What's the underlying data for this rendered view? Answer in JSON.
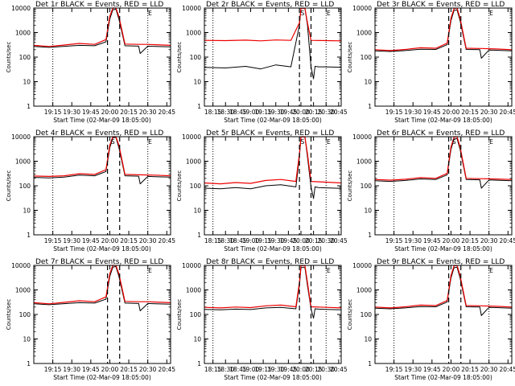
{
  "figure": {
    "colors": {
      "events": "#000000",
      "lld": "#ee0000",
      "background": "#ffffff"
    },
    "x_ticks": [
      "18:15",
      "18:30",
      "18:45",
      "19:00",
      "19:15",
      "19:30",
      "19:45",
      "20:00",
      "20:15",
      "20:30",
      "20:45"
    ],
    "y_ticks": [
      "1",
      "10",
      "100",
      "1000",
      "10000"
    ],
    "ylabel": "Counts/sec"
  },
  "chart_data": [
    {
      "type": "line",
      "title": "Det 1r BLACK = Events, RED = LLD",
      "xlabel": "Start Time (02-Mar-09 18:05:00)",
      "ylabel": "Counts/sec",
      "x_ticks": [
        "19:15",
        "19:30",
        "19:45",
        "20:00",
        "20:15",
        "20:30",
        "20:45"
      ],
      "xlim_hours": [
        19.0,
        20.8
      ],
      "ylim": [
        1,
        10000
      ],
      "yscale": "log",
      "dotted_lines_hours": [
        19.25,
        20.5
      ],
      "dashed_lines_hours": [
        19.97,
        20.13
      ],
      "markers": {
        "S": null,
        "E": 20.53
      },
      "series": [
        {
          "name": "Events",
          "color": "#000000",
          "x": [
            19.0,
            19.2,
            19.4,
            19.6,
            19.8,
            19.95,
            20.0,
            20.04,
            20.08,
            20.12,
            20.2,
            20.38,
            20.4,
            20.5,
            20.6,
            20.8
          ],
          "values": [
            270,
            250,
            275,
            300,
            290,
            420,
            3500,
            8500,
            9000,
            3500,
            290,
            280,
            140,
            280,
            270,
            260
          ]
        },
        {
          "name": "LLD",
          "color": "#ee0000",
          "x": [
            19.0,
            19.2,
            19.4,
            19.6,
            19.8,
            19.95,
            20.0,
            20.04,
            20.08,
            20.12,
            20.2,
            20.38,
            20.4,
            20.5,
            20.6,
            20.8
          ],
          "values": [
            300,
            270,
            310,
            360,
            330,
            520,
            4500,
            10000,
            10000,
            4500,
            340,
            330,
            330,
            330,
            320,
            300
          ]
        }
      ]
    },
    {
      "type": "line",
      "title": "Det 2r BLACK = Events, RED = LLD",
      "xlabel": "Start Time (02-Mar-09 18:05:00)",
      "ylabel": "Counts/sec",
      "x_ticks": [
        "18:15",
        "18:30",
        "18:45",
        "19:00",
        "19:15",
        "19:30",
        "19:45",
        "20:00",
        "20:15",
        "20:30",
        "20:45"
      ],
      "xlim_hours": [
        18.08,
        20.8
      ],
      "ylim": [
        1,
        10000
      ],
      "yscale": "log",
      "dotted_lines_hours": [
        18.25,
        20.5
      ],
      "dashed_lines_hours": [
        19.97,
        20.2
      ],
      "markers": {
        "S": 20.03,
        "E": 20.55
      },
      "series": [
        {
          "name": "Events",
          "color": "#000000",
          "x": [
            18.08,
            18.5,
            18.9,
            19.2,
            19.5,
            19.8,
            19.97,
            20.0,
            20.04,
            20.08,
            20.13,
            20.2,
            20.25,
            20.28,
            20.35,
            20.5,
            20.8
          ],
          "values": [
            38,
            36,
            42,
            33,
            48,
            40,
            2000,
            9500,
            10000,
            9500,
            2000,
            40,
            13,
            42,
            40,
            40,
            38
          ]
        },
        {
          "name": "LLD",
          "color": "#ee0000",
          "x": [
            18.08,
            18.5,
            18.9,
            19.2,
            19.5,
            19.8,
            19.97,
            20.0,
            20.04,
            20.08,
            20.13,
            20.2,
            20.5,
            20.8
          ],
          "values": [
            480,
            470,
            490,
            460,
            500,
            480,
            2500,
            9500,
            10000,
            9500,
            2500,
            480,
            470,
            460
          ]
        }
      ]
    },
    {
      "type": "line",
      "title": "Det 3r BLACK = Events, RED = LLD",
      "xlabel": "Start Time (02-Mar-09 18:05:00)",
      "ylabel": "Counts/sec",
      "x_ticks": [
        "19:15",
        "19:30",
        "19:45",
        "20:00",
        "20:15",
        "20:30",
        "20:45"
      ],
      "xlim_hours": [
        19.0,
        20.8
      ],
      "ylim": [
        1,
        10000
      ],
      "yscale": "log",
      "dotted_lines_hours": [
        19.25,
        20.5
      ],
      "dashed_lines_hours": [
        19.97,
        20.13
      ],
      "markers": {
        "S": null,
        "E": 20.53
      },
      "series": [
        {
          "name": "Events",
          "color": "#000000",
          "x": [
            19.0,
            19.2,
            19.4,
            19.6,
            19.8,
            19.95,
            20.0,
            20.04,
            20.08,
            20.12,
            20.2,
            20.38,
            20.4,
            20.5,
            20.6,
            20.8
          ],
          "values": [
            180,
            170,
            185,
            210,
            205,
            320,
            3000,
            8000,
            8500,
            3000,
            205,
            200,
            90,
            195,
            190,
            180
          ]
        },
        {
          "name": "LLD",
          "color": "#ee0000",
          "x": [
            19.0,
            19.2,
            19.4,
            19.6,
            19.8,
            19.95,
            20.0,
            20.04,
            20.08,
            20.12,
            20.2,
            20.38,
            20.4,
            20.5,
            20.6,
            20.8
          ],
          "values": [
            200,
            185,
            205,
            240,
            230,
            370,
            3800,
            9500,
            10000,
            3800,
            230,
            225,
            225,
            220,
            215,
            200
          ]
        }
      ]
    },
    {
      "type": "line",
      "title": "Det 4r BLACK = Events, RED = LLD",
      "xlabel": "Start Time (02-Mar-09 18:05:00)",
      "ylabel": "Counts/sec",
      "x_ticks": [
        "19:15",
        "19:30",
        "19:45",
        "20:00",
        "20:15",
        "20:30",
        "20:45"
      ],
      "xlim_hours": [
        19.0,
        20.8
      ],
      "ylim": [
        1,
        10000
      ],
      "yscale": "log",
      "dotted_lines_hours": [
        19.25,
        20.5
      ],
      "dashed_lines_hours": [
        19.97,
        20.13
      ],
      "markers": {
        "S": 20.04,
        "E": 20.53
      },
      "series": [
        {
          "name": "Events",
          "color": "#000000",
          "x": [
            19.0,
            19.2,
            19.4,
            19.6,
            19.8,
            19.95,
            20.0,
            20.04,
            20.08,
            20.12,
            20.2,
            20.38,
            20.4,
            20.5,
            20.6,
            20.8
          ],
          "values": [
            220,
            210,
            225,
            270,
            255,
            380,
            3500,
            9000,
            9500,
            3500,
            255,
            245,
            120,
            240,
            235,
            225
          ]
        },
        {
          "name": "LLD",
          "color": "#ee0000",
          "x": [
            19.0,
            19.2,
            19.4,
            19.6,
            19.8,
            19.95,
            20.0,
            20.04,
            20.08,
            20.12,
            20.2,
            20.38,
            20.4,
            20.5,
            20.6,
            20.8
          ],
          "values": [
            250,
            240,
            255,
            310,
            290,
            450,
            4500,
            10000,
            10000,
            4500,
            290,
            280,
            280,
            275,
            270,
            255
          ]
        }
      ]
    },
    {
      "type": "line",
      "title": "Det 5r BLACK = Events, RED = LLD",
      "xlabel": "Start Time (02-Mar-09 18:05:00)",
      "ylabel": "Counts/sec",
      "x_ticks": [
        "18:15",
        "18:30",
        "18:45",
        "19:00",
        "19:15",
        "19:30",
        "19:45",
        "20:00",
        "20:15",
        "20:30",
        "20:45"
      ],
      "xlim_hours": [
        18.08,
        20.8
      ],
      "ylim": [
        1,
        10000
      ],
      "yscale": "log",
      "dotted_lines_hours": [
        18.25,
        20.5
      ],
      "dashed_lines_hours": [
        19.97,
        20.2
      ],
      "markers": {
        "S": 20.03,
        "E": 20.55
      },
      "series": [
        {
          "name": "Events",
          "color": "#000000",
          "x": [
            18.08,
            18.4,
            18.7,
            19.0,
            19.3,
            19.6,
            19.9,
            19.97,
            20.0,
            20.04,
            20.08,
            20.13,
            20.2,
            20.25,
            20.28,
            20.35,
            20.5,
            20.8
          ],
          "values": [
            80,
            75,
            85,
            75,
            100,
            110,
            90,
            1500,
            9500,
            10000,
            9500,
            1500,
            90,
            30,
            90,
            85,
            82,
            78
          ]
        },
        {
          "name": "LLD",
          "color": "#ee0000",
          "x": [
            18.08,
            18.4,
            18.7,
            19.0,
            19.3,
            19.6,
            19.9,
            19.97,
            20.0,
            20.04,
            20.08,
            20.13,
            20.2,
            20.5,
            20.8
          ],
          "values": [
            130,
            120,
            135,
            125,
            165,
            180,
            150,
            2000,
            9500,
            10000,
            9500,
            2000,
            150,
            140,
            130
          ]
        }
      ]
    },
    {
      "type": "line",
      "title": "Det 6r BLACK = Events, RED = LLD",
      "xlabel": "Start Time (02-Mar-09 18:05:00)",
      "ylabel": "Counts/sec",
      "x_ticks": [
        "19:15",
        "19:30",
        "19:45",
        "20:00",
        "20:15",
        "20:30",
        "20:45"
      ],
      "xlim_hours": [
        19.0,
        20.8
      ],
      "ylim": [
        1,
        10000
      ],
      "yscale": "log",
      "dotted_lines_hours": [
        19.25,
        20.5
      ],
      "dashed_lines_hours": [
        19.97,
        20.13
      ],
      "markers": {
        "S": 20.04,
        "E": 20.53
      },
      "series": [
        {
          "name": "Events",
          "color": "#000000",
          "x": [
            19.0,
            19.2,
            19.4,
            19.6,
            19.8,
            19.95,
            20.0,
            20.04,
            20.08,
            20.12,
            20.2,
            20.38,
            20.4,
            20.5,
            20.6,
            20.8
          ],
          "values": [
            160,
            150,
            165,
            190,
            180,
            280,
            3000,
            8000,
            8500,
            3000,
            180,
            175,
            80,
            172,
            168,
            160
          ]
        },
        {
          "name": "LLD",
          "color": "#ee0000",
          "x": [
            19.0,
            19.2,
            19.4,
            19.6,
            19.8,
            19.95,
            20.0,
            20.04,
            20.08,
            20.12,
            20.2,
            20.38,
            20.4,
            20.5,
            20.6,
            20.8
          ],
          "values": [
            180,
            170,
            185,
            215,
            200,
            320,
            3800,
            9500,
            10000,
            3800,
            200,
            195,
            195,
            192,
            188,
            180
          ]
        }
      ]
    },
    {
      "type": "line",
      "title": "Det 7r BLACK = Events, RED = LLD",
      "xlabel": "Start Time (02-Mar-09 18:05:00)",
      "ylabel": "Counts/sec",
      "x_ticks": [
        "19:15",
        "19:30",
        "19:45",
        "20:00",
        "20:15",
        "20:30",
        "20:45"
      ],
      "xlim_hours": [
        19.0,
        20.8
      ],
      "ylim": [
        1,
        10000
      ],
      "yscale": "log",
      "dotted_lines_hours": [
        19.25,
        20.5
      ],
      "dashed_lines_hours": [
        19.97,
        20.13
      ],
      "markers": {
        "S": null,
        "E": 20.53
      },
      "series": [
        {
          "name": "Events",
          "color": "#000000",
          "x": [
            19.0,
            19.2,
            19.4,
            19.6,
            19.8,
            19.95,
            20.0,
            20.04,
            20.08,
            20.12,
            20.2,
            20.38,
            20.4,
            20.5,
            20.6,
            20.8
          ],
          "values": [
            270,
            250,
            275,
            300,
            290,
            420,
            3500,
            8500,
            9000,
            3500,
            290,
            280,
            140,
            280,
            270,
            260
          ]
        },
        {
          "name": "LLD",
          "color": "#ee0000",
          "x": [
            19.0,
            19.2,
            19.4,
            19.6,
            19.8,
            19.95,
            20.0,
            20.04,
            20.08,
            20.12,
            20.2,
            20.38,
            20.4,
            20.5,
            20.6,
            20.8
          ],
          "values": [
            300,
            270,
            310,
            360,
            330,
            520,
            4500,
            10000,
            10000,
            4500,
            340,
            330,
            330,
            330,
            320,
            300
          ]
        }
      ]
    },
    {
      "type": "line",
      "title": "Det 8r BLACK = Events, RED = LLD",
      "xlabel": "Start Time (02-Mar-09 18:05:00)",
      "ylabel": "Counts/sec",
      "x_ticks": [
        "18:15",
        "18:30",
        "18:45",
        "19:00",
        "19:15",
        "19:30",
        "19:45",
        "20:00",
        "20:15",
        "20:30",
        "20:45"
      ],
      "xlim_hours": [
        18.08,
        20.8
      ],
      "ylim": [
        1,
        10000
      ],
      "yscale": "log",
      "dotted_lines_hours": [
        18.25,
        20.5
      ],
      "dashed_lines_hours": [
        19.97,
        20.2
      ],
      "markers": {
        "S": null,
        "E": 20.55
      },
      "series": [
        {
          "name": "Events",
          "color": "#000000",
          "x": [
            18.08,
            18.4,
            18.7,
            19.0,
            19.3,
            19.6,
            19.9,
            19.97,
            20.0,
            20.04,
            20.08,
            20.13,
            20.2,
            20.25,
            20.28,
            20.35,
            20.5,
            20.8
          ],
          "values": [
            160,
            155,
            165,
            158,
            185,
            195,
            170,
            1500,
            8000,
            8500,
            8000,
            1500,
            170,
            70,
            170,
            165,
            160,
            155
          ]
        },
        {
          "name": "LLD",
          "color": "#ee0000",
          "x": [
            18.08,
            18.4,
            18.7,
            19.0,
            19.3,
            19.6,
            19.9,
            19.97,
            20.0,
            20.04,
            20.08,
            20.13,
            20.2,
            20.5,
            20.8
          ],
          "values": [
            195,
            185,
            200,
            190,
            225,
            240,
            205,
            2000,
            9500,
            10000,
            9500,
            2000,
            205,
            195,
            185
          ]
        }
      ]
    },
    {
      "type": "line",
      "title": "Det 9r BLACK = Events, RED = LLD",
      "xlabel": "Start Time (02-Mar-09 18:05:00)",
      "ylabel": "Counts/sec",
      "x_ticks": [
        "19:15",
        "19:30",
        "19:45",
        "20:00",
        "20:15",
        "20:30",
        "20:45"
      ],
      "xlim_hours": [
        19.0,
        20.8
      ],
      "ylim": [
        1,
        10000
      ],
      "yscale": "log",
      "dotted_lines_hours": [
        19.25,
        20.5
      ],
      "dashed_lines_hours": [
        19.97,
        20.13
      ],
      "markers": {
        "S": null,
        "E": 20.53
      },
      "series": [
        {
          "name": "Events",
          "color": "#000000",
          "x": [
            19.0,
            19.2,
            19.4,
            19.6,
            19.8,
            19.95,
            20.0,
            20.04,
            20.08,
            20.12,
            20.2,
            20.38,
            20.4,
            20.5,
            20.6,
            20.8
          ],
          "values": [
            180,
            170,
            185,
            210,
            205,
            320,
            3000,
            8000,
            8500,
            3000,
            205,
            200,
            90,
            195,
            190,
            180
          ]
        },
        {
          "name": "LLD",
          "color": "#ee0000",
          "x": [
            19.0,
            19.2,
            19.4,
            19.6,
            19.8,
            19.95,
            20.0,
            20.04,
            20.08,
            20.12,
            20.2,
            20.38,
            20.4,
            20.5,
            20.6,
            20.8
          ],
          "values": [
            200,
            185,
            205,
            240,
            230,
            370,
            3800,
            9500,
            10000,
            3800,
            230,
            225,
            225,
            220,
            215,
            200
          ]
        }
      ]
    }
  ]
}
